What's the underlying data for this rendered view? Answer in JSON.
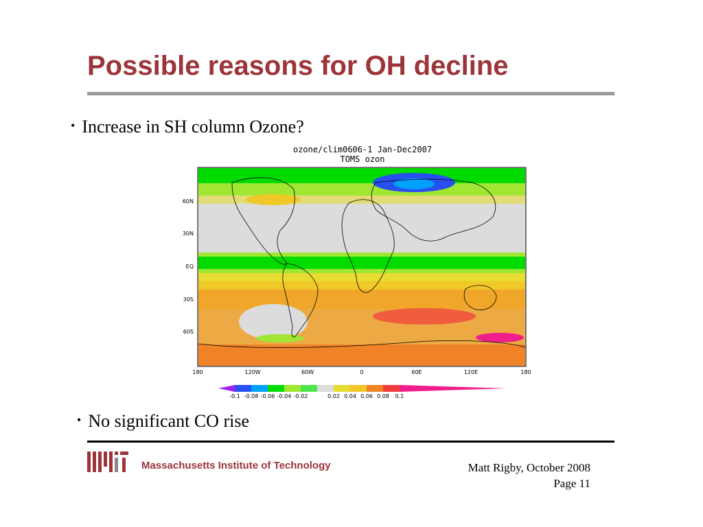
{
  "slide": {
    "title": "Possible reasons for OH decline",
    "bullets": [
      "Increase in SH column Ozone?",
      "No significant CO rise"
    ]
  },
  "figure": {
    "title_line1": "ozone/clim0606-1 Jan-Dec2007",
    "title_line2": "TOMS ozon",
    "lat_labels": [
      "60N",
      "30N",
      "EQ",
      "30S",
      "60S"
    ],
    "lon_labels": [
      "180",
      "120W",
      "60W",
      "0",
      "60E",
      "120E",
      "180"
    ],
    "colorbar_labels": [
      "-0.1",
      "-0.08",
      "-0.06",
      "-0.04",
      "-0.02",
      "0.02",
      "0.04",
      "0.06",
      "0.08",
      "0.1"
    ],
    "colorbar_colors": [
      "#a020f0",
      "#2850f0",
      "#00a0ff",
      "#00dc00",
      "#a0e632",
      "#dcdcdc",
      "#e6dc32",
      "#f0c828",
      "#f08228",
      "#f03c3c",
      "#f01e8c"
    ]
  },
  "footer": {
    "institution": "Massachusetts Institute of Technology",
    "author_date": "Matt Rigby, October 2008",
    "page": "Page 11"
  }
}
